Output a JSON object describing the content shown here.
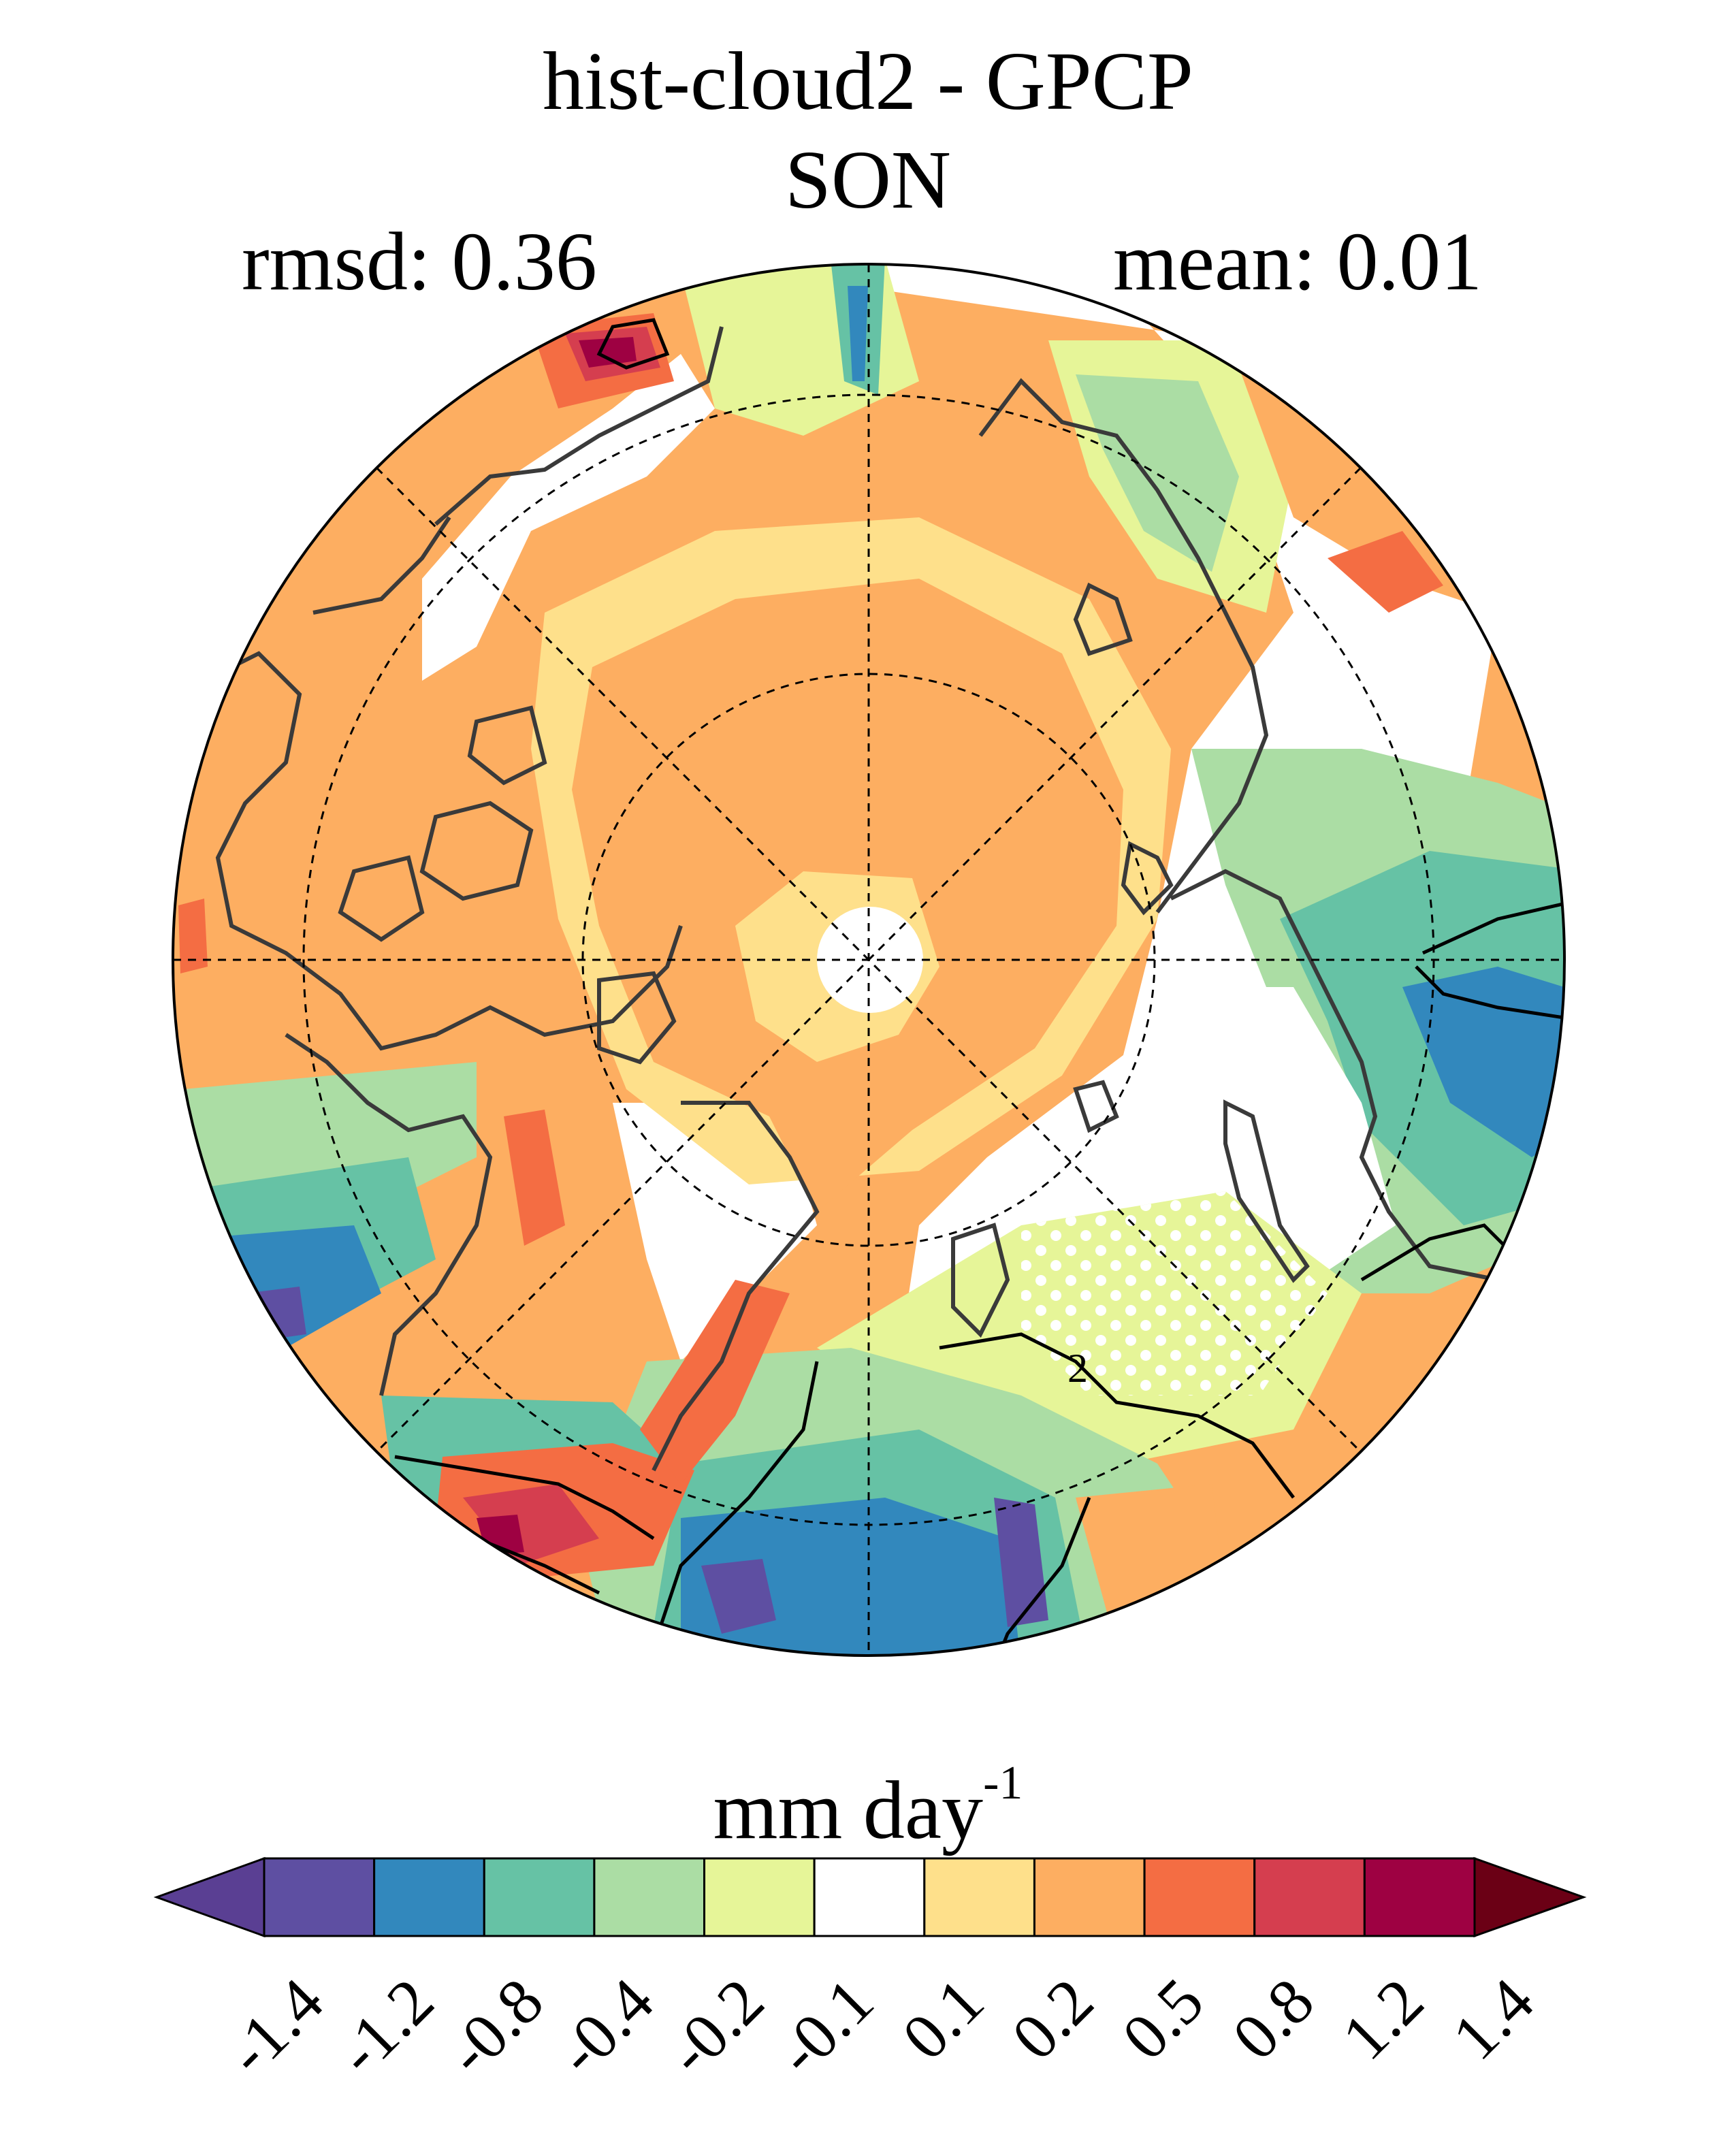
{
  "title": "hist-cloud2 - GPCP",
  "season": "SON",
  "rmsd_label": "rmsd: 0.36",
  "mean_label": "mean: 0.01",
  "colorbar": {
    "unit_main": "mm day",
    "unit_exp": "-1",
    "ticks": [
      "-1.4",
      "-1.2",
      "-0.8",
      "-0.4",
      "-0.2",
      "-0.1",
      "0.1",
      "0.2",
      "0.5",
      "0.8",
      "1.2",
      "1.4"
    ],
    "colors": [
      "#5a3f93",
      "#5e4fa2",
      "#3288bd",
      "#66c2a5",
      "#abdda4",
      "#e6f598",
      "#ffffff",
      "#fee08b",
      "#fdae61",
      "#f46d43",
      "#d53e4f",
      "#9e0142",
      "#6b0015"
    ]
  },
  "contour_label": "2",
  "regions": {
    "orange": "#fdae61",
    "yellow": "#fee08b",
    "green_light": "#abdda4",
    "green_pale": "#e6f598",
    "teal": "#66c2a5",
    "blue": "#3288bd",
    "purple": "#5e4fa2",
    "red_orange": "#f46d43",
    "red": "#d53e4f",
    "dark_red": "#9e0142"
  }
}
